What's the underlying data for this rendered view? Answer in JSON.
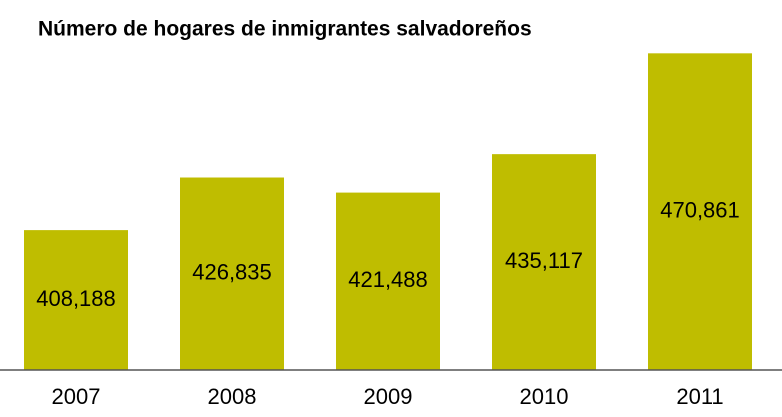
{
  "chart_data": {
    "type": "bar",
    "title": "Número de hogares de inmigrantes salvadoreños",
    "categories": [
      "2007",
      "2008",
      "2009",
      "2010",
      "2011"
    ],
    "values": [
      408188,
      426835,
      421488,
      435117,
      470861
    ],
    "value_labels": [
      "408,188",
      "426,835",
      "421,488",
      "435,117",
      "470,861"
    ],
    "color": "#bfbd00",
    "ylim": [
      358600,
      477000
    ]
  }
}
